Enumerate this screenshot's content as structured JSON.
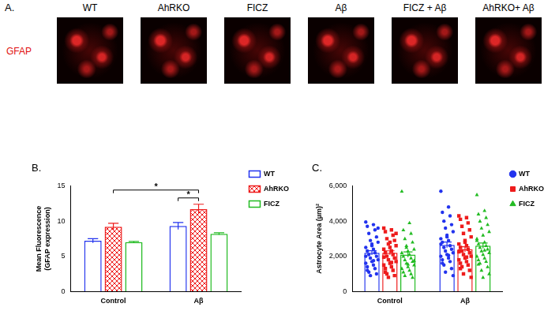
{
  "panel_a": {
    "label": "A.",
    "stain": "GFAP",
    "conditions": [
      "WT",
      "AhRKO",
      "FICZ",
      "Aβ",
      "FICZ + Aβ",
      "AhRKO+ Aβ"
    ]
  },
  "chart_data": [
    {
      "type": "bar",
      "title": "B.",
      "ylabel": [
        "Mean Fluorescence",
        "(GFAP expression)"
      ],
      "categories": [
        "Control",
        "Aβ"
      ],
      "series": [
        {
          "name": "WT",
          "color": "#2233ee",
          "values": [
            7.2,
            9.3
          ],
          "errors": [
            0.3,
            0.5
          ]
        },
        {
          "name": "AhRKO",
          "color": "#ee1c1c",
          "values": [
            9.2,
            11.7
          ],
          "errors": [
            0.5,
            0.7
          ]
        },
        {
          "name": "FICZ",
          "color": "#22bb22",
          "values": [
            7.0,
            8.2
          ],
          "errors": [
            0.1,
            0.15
          ]
        }
      ],
      "significance": [
        {
          "label": "*",
          "between": [
            [
              "Control",
              "AhRKO"
            ],
            [
              "Aβ",
              "AhRKO"
            ]
          ]
        },
        {
          "label": "*",
          "between": [
            [
              "Aβ",
              "WT"
            ],
            [
              "Aβ",
              "AhRKO"
            ]
          ]
        }
      ],
      "ylim": [
        0,
        15
      ],
      "yticks": [
        0,
        5,
        10,
        15
      ],
      "grid": false,
      "legend": "right"
    },
    {
      "type": "bar",
      "title": "C.",
      "ylabel": "Astrocyte Area (µm)²",
      "categories": [
        "Control",
        "Aβ"
      ],
      "series": [
        {
          "name": "WT",
          "color": "#2233ee",
          "marker": "circle",
          "values": [
            2200,
            2650
          ],
          "errors": [
            120,
            160
          ],
          "points": [
            [
              3950,
              3800,
              3700,
              3500,
              3300,
              3100,
              2900,
              2800,
              2600,
              2500,
              2400,
              2300,
              2200,
              2100,
              2000,
              1900,
              1800,
              1700,
              1600,
              1500,
              1400,
              1300,
              1100,
              1000,
              900,
              3600,
              2700,
              2000,
              1750,
              1200
            ],
            [
              5700,
              4800,
              4500,
              4300,
              4000,
              3800,
              3600,
              3400,
              3200,
              3000,
              2900,
              2800,
              2600,
              2500,
              2400,
              2300,
              2200,
              2100,
              2000,
              1900,
              1800,
              1700,
              1500,
              1300,
              1100,
              900,
              3100,
              2700,
              2050,
              1600
            ]
          ]
        },
        {
          "name": "AhRKO",
          "color": "#ee1c1c",
          "marker": "square",
          "values": [
            2200,
            2400
          ],
          "errors": [
            110,
            140
          ],
          "points": [
            [
              3600,
              3500,
              3400,
              3200,
              3000,
              2900,
              2700,
              2600,
              2500,
              2400,
              2300,
              2200,
              2100,
              2000,
              1900,
              1800,
              1700,
              1600,
              1500,
              1400,
              1300,
              1200,
              1000,
              900,
              800,
              3300,
              2800,
              1950,
              1650,
              1100
            ],
            [
              4300,
              4200,
              4100,
              3900,
              3700,
              3500,
              3300,
              3100,
              2900,
              2700,
              2600,
              2500,
              2400,
              2300,
              2200,
              2100,
              2000,
              1900,
              1800,
              1700,
              1600,
              1500,
              1400,
              1200,
              1000,
              800,
              2800,
              2250,
              1950,
              1300
            ]
          ]
        },
        {
          "name": "FICZ",
          "color": "#22bb22",
          "marker": "triangle",
          "values": [
            2100,
            2600
          ],
          "errors": [
            150,
            150
          ],
          "points": [
            [
              5700,
              3900,
              3500,
              3300,
              3000,
              2800,
              2600,
              2400,
              2300,
              2200,
              2100,
              2000,
              1900,
              1800,
              1700,
              1600,
              1500,
              1400,
              1300,
              1200,
              1100,
              1000,
              900,
              800,
              2500,
              1750,
              1550
            ],
            [
              5500,
              4600,
              4400,
              4200,
              4000,
              3800,
              3600,
              3400,
              3200,
              3000,
              2800,
              2700,
              2600,
              2500,
              2400,
              2300,
              2200,
              2100,
              2000,
              1900,
              1800,
              1700,
              1600,
              1400,
              1200,
              1000,
              800,
              2900,
              2350,
              1550
            ]
          ]
        }
      ],
      "ylim": [
        0,
        6000
      ],
      "yticks": [
        0,
        2000,
        4000,
        6000
      ],
      "grid": false,
      "legend": "right"
    }
  ]
}
